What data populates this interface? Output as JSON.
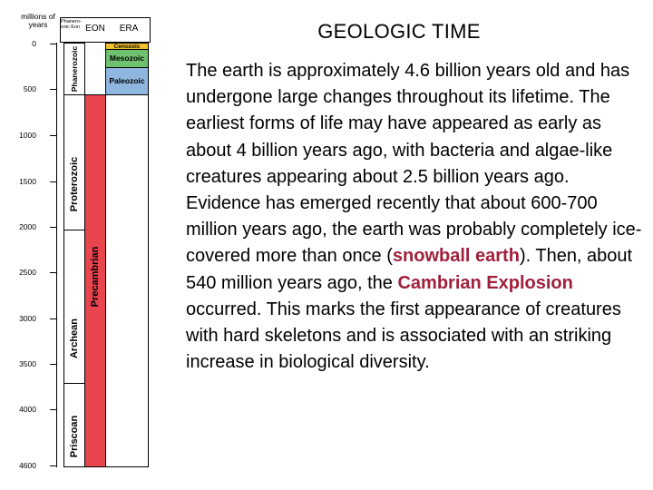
{
  "column": {
    "header_units": "millions of years",
    "header_eon_scale": "Phanero-zoic Eon",
    "header_eon": "EON",
    "header_era": "ERA",
    "ticks": [
      "0",
      "500",
      "1000",
      "1500",
      "2000",
      "2500",
      "3000",
      "3500",
      "4000",
      "4600"
    ],
    "eons_left": [
      "Phanerozoic",
      "Proterozoic",
      "Archean",
      "Priscoan"
    ],
    "eon_right": "Precambrian",
    "eras": [
      "Cenozoic",
      "Mesozoic",
      "Paleozoic"
    ],
    "colors": {
      "cenozoic": "#f2c12e",
      "mesozoic": "#6fc06f",
      "paleozoic": "#8fb6df",
      "precambrian": "#e8454f",
      "eon_bg": "#ffffff"
    }
  },
  "title": "GEOLOGIC TIME",
  "body": {
    "part1": "The earth is approximately 4.6 billion years old and has undergone large changes throughout its lifetime.  The earliest forms of life may have appeared as early as about 4 billion years ago, with bacteria and algae-like creatures appearing about 2.5 billion years ago.  Evidence has emerged recently that about 600-700 million years ago, the earth was probably completely ice-covered more than once (",
    "highlight1": "snowball earth",
    "part2": ").  Then, about 540 million years ago, the ",
    "highlight2": "Cambrian Explosion",
    "part3": " occurred.  This marks the first appearance of creatures with hard skeletons and is associated with an striking increase in biological diversity."
  }
}
